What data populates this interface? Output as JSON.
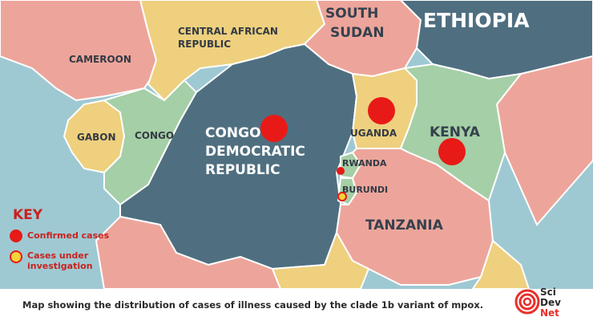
{
  "map": {
    "countries": {
      "ethiopia": "ETHIOPIA",
      "south_sudan_1": "SOUTH",
      "south_sudan_2": "SUDAN",
      "car_1": "CENTRAL AFRICAN",
      "car_2": "REPUBLIC",
      "cameroon": "CAMEROON",
      "gabon": "GABON",
      "congo": "CONGO",
      "drc_1": "CONGO",
      "drc_2": "DEMOCRATIC",
      "drc_3": "REPUBLIC",
      "uganda": "UGANDA",
      "kenya": "KENYA",
      "rwanda": "RWANDA",
      "burundi": "BURUNDI",
      "tanzania": "TANZANIA"
    },
    "markers": [
      {
        "country": "Congo Democratic Republic",
        "status": "confirmed"
      },
      {
        "country": "Uganda",
        "status": "confirmed"
      },
      {
        "country": "Kenya",
        "status": "confirmed"
      },
      {
        "country": "Rwanda",
        "status": "confirmed"
      },
      {
        "country": "Burundi",
        "status": "under investigation"
      }
    ],
    "colors": {
      "water": "#9ec9d3",
      "confirmed": "#e81a17",
      "investigation_fill": "#f5d33a",
      "investigation_ring": "#e81a17"
    }
  },
  "key": {
    "title": "KEY",
    "confirmed_label": "Confirmed cases",
    "investigation_label": "Cases under investigation"
  },
  "caption": "Map showing the distribution of cases of illness caused by the clade 1b variant of mpox.",
  "logo": {
    "line1": "Sci",
    "line2": "Dev",
    "line3": "Net"
  }
}
